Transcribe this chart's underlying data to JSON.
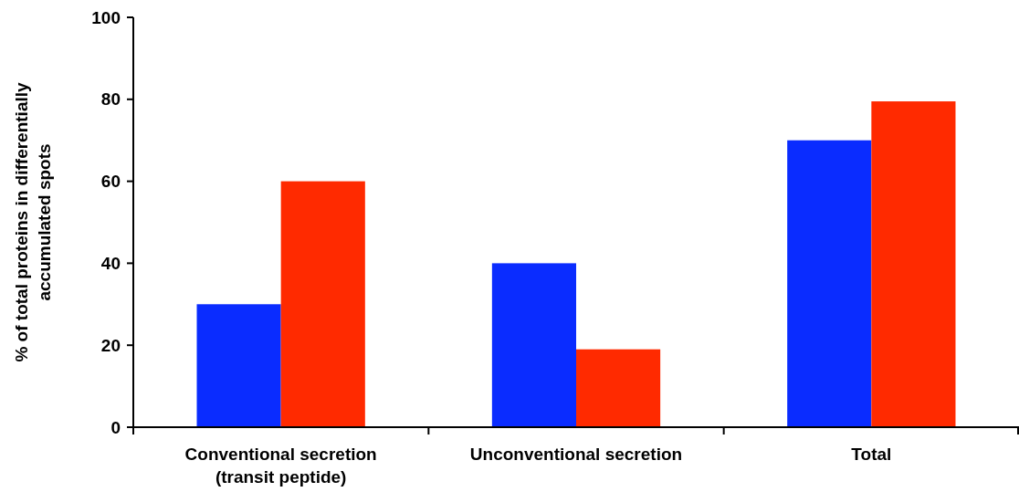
{
  "chart_data": {
    "type": "bar",
    "ylabel": "% of total proteins in differentially\naccumulated spots",
    "categories": [
      "Conventional secretion\n(transit peptide)",
      "Unconventional secretion",
      "Total"
    ],
    "series": [
      {
        "color": "#0a2cff",
        "values": [
          30,
          40,
          70
        ]
      },
      {
        "color": "#ff2a00",
        "values": [
          60,
          19,
          79.5
        ]
      }
    ],
    "ylim": [
      0,
      100
    ],
    "yticks": [
      0,
      20,
      40,
      60,
      80,
      100
    ]
  }
}
